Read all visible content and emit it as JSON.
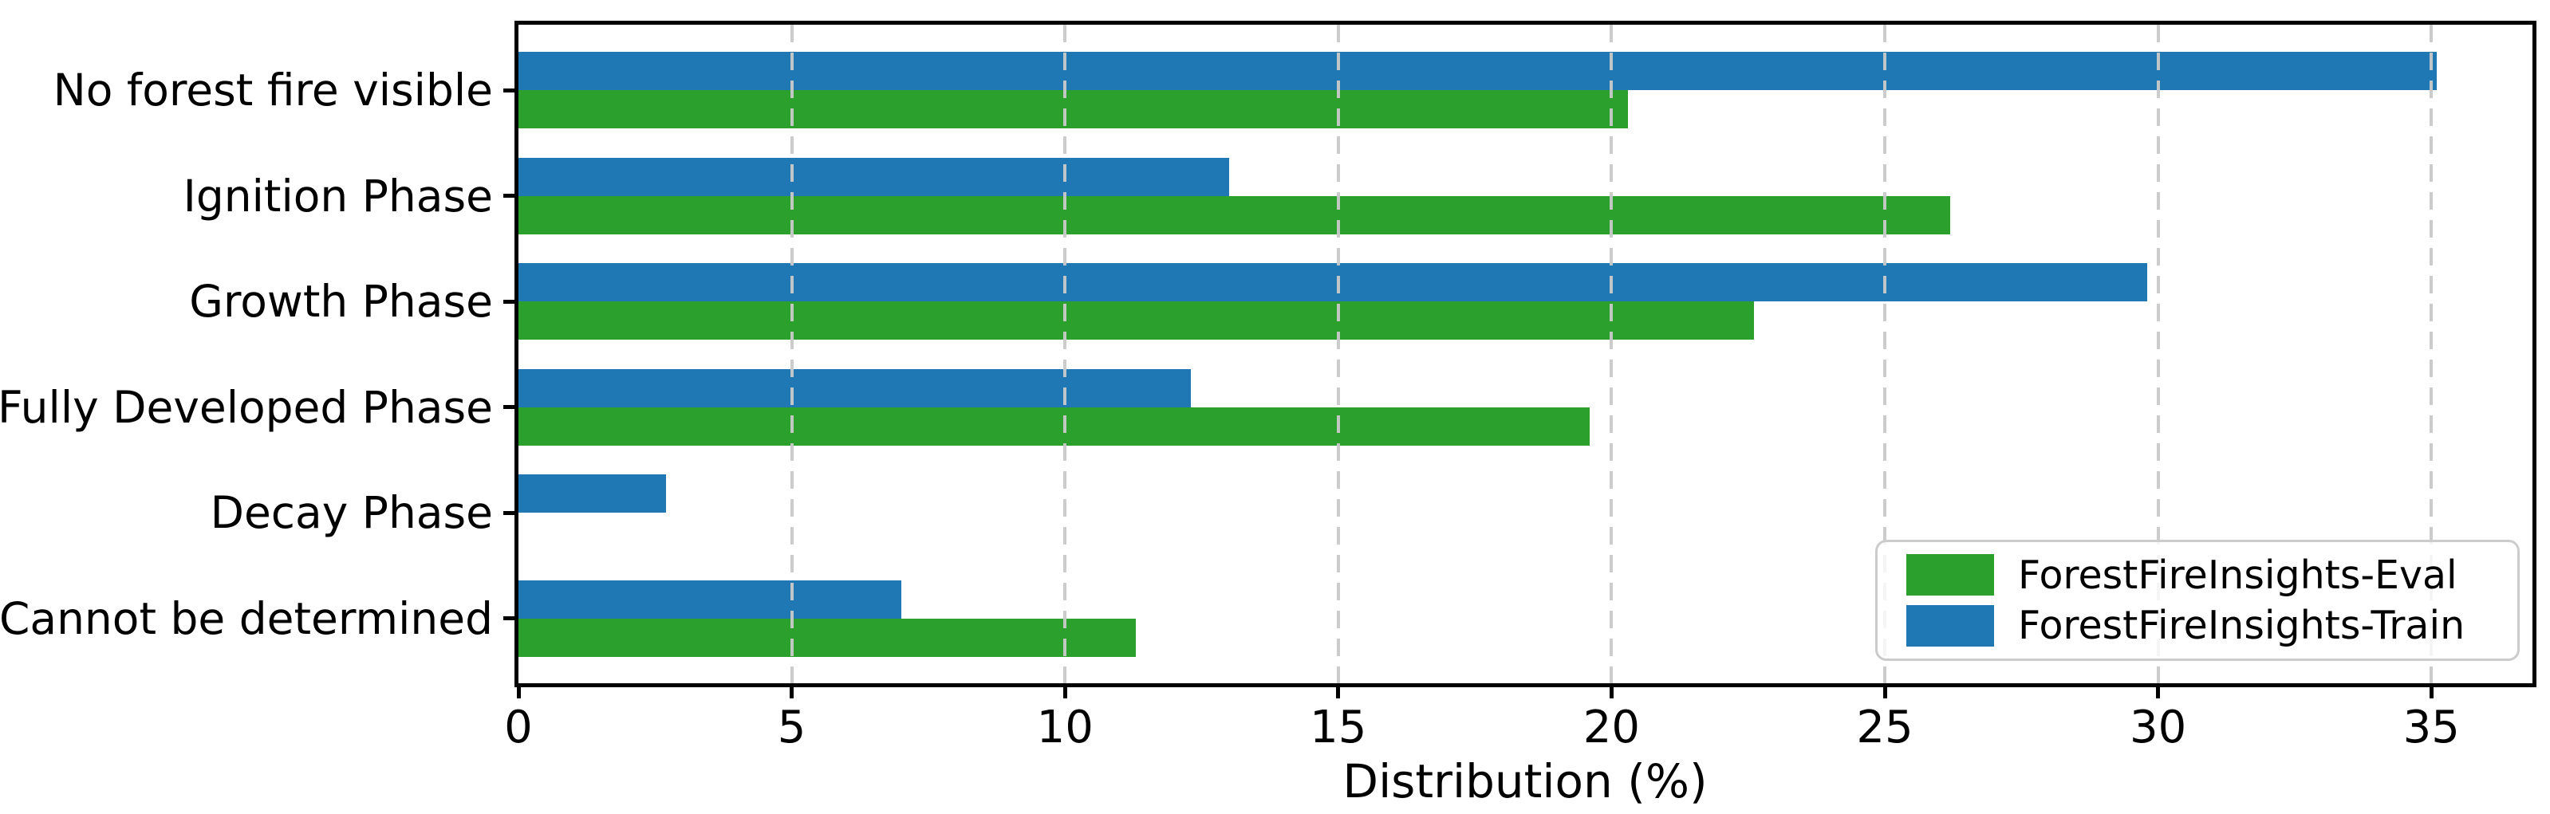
{
  "chart_data": {
    "type": "bar",
    "orientation": "horizontal",
    "title": "",
    "xlabel": "Distribution (%)",
    "ylabel": "",
    "categories": [
      "No forest fire visible",
      "Ignition Phase",
      "Growth Phase",
      "Fully Developed Phase",
      "Decay Phase",
      "Cannot be determined"
    ],
    "series": [
      {
        "name": "ForestFireInsights-Eval",
        "color": "#2ca02c",
        "values": [
          20.3,
          26.2,
          22.6,
          19.6,
          0.0,
          11.3
        ]
      },
      {
        "name": "ForestFireInsights-Train",
        "color": "#1f77b4",
        "values": [
          35.1,
          13.0,
          29.8,
          12.3,
          2.7,
          7.0
        ]
      }
    ],
    "xticks": [
      0,
      5,
      10,
      15,
      20,
      25,
      30,
      35
    ],
    "xlim": [
      0,
      36.85
    ],
    "grid": "vertical-dashed",
    "grid_color": "#c9c9c9",
    "legend_position": "lower right",
    "spine_color": "#000000"
  }
}
